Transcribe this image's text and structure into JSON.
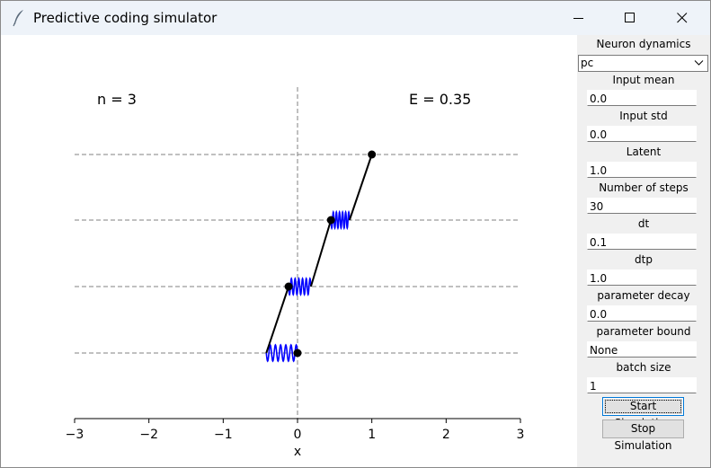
{
  "window": {
    "title": "Predictive coding simulator",
    "icon": "feather-icon",
    "controls": [
      "minimize-icon",
      "maximize-icon",
      "close-icon"
    ]
  },
  "plot": {
    "n_label": "n = 3",
    "energy_label": "E = 0.35",
    "xlabel": "x",
    "xlim": [
      -3,
      3
    ],
    "xticks": [
      "−3",
      "−2",
      "−1",
      "0",
      "1",
      "2",
      "3"
    ],
    "line_color": "#000000",
    "spring_color": "#0000ff",
    "guide_color": "#808080"
  },
  "chart_data": {
    "type": "line",
    "title": "",
    "xlabel": "x",
    "ylabel": "",
    "xlim": [
      -3,
      3
    ],
    "grid": false,
    "layers": [
      0,
      1,
      2,
      3
    ],
    "nodes_x": [
      0.0,
      -0.12,
      0.45,
      1.0
    ],
    "predictions_x": [
      -0.42,
      0.18,
      0.7
    ],
    "n": 3,
    "E": 0.35
  },
  "controls": {
    "neuron_dynamics": {
      "label": "Neuron dynamics",
      "value": "pc"
    },
    "fields": [
      {
        "label": "Input mean",
        "value": "0.0"
      },
      {
        "label": "Input std",
        "value": "0.0"
      },
      {
        "label": "Latent",
        "value": "1.0"
      },
      {
        "label": "Number of steps",
        "value": "30"
      },
      {
        "label": "dt",
        "value": "0.1"
      },
      {
        "label": "dtp",
        "value": "1.0"
      },
      {
        "label": "parameter decay",
        "value": "0.0"
      },
      {
        "label": "parameter bound",
        "value": "None"
      },
      {
        "label": "batch size",
        "value": "1"
      }
    ],
    "start_label": "Start Simulation",
    "stop_label": "Stop Simulation"
  }
}
